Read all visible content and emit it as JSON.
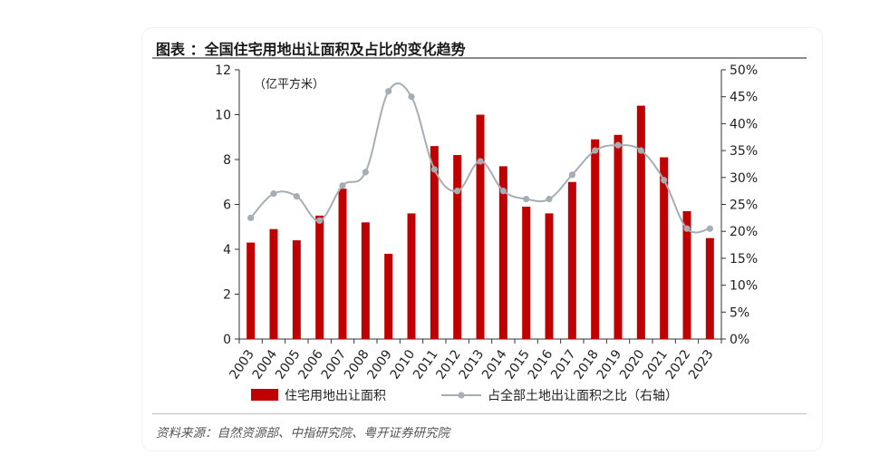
{
  "figure": {
    "title": "图表 ：全国住宅用地出让面积及占比的变化趋势",
    "source": "资料来源：自然资源部、中指研究院、粤开证券研究院"
  },
  "chart_data": {
    "type": "bar+line",
    "left_unit_label": "（亿平方米）",
    "categories": [
      "2003",
      "2004",
      "2005",
      "2006",
      "2007",
      "2008",
      "2009",
      "2010",
      "2011",
      "2012",
      "2013",
      "2014",
      "2015",
      "2016",
      "2017",
      "2018",
      "2019",
      "2020",
      "2021",
      "2022",
      "2023"
    ],
    "series": [
      {
        "name": "住宅用地出让面积",
        "type": "bar",
        "axis": "left",
        "color": "#c00000",
        "values": [
          4.3,
          4.9,
          4.4,
          5.5,
          6.7,
          5.2,
          3.8,
          5.6,
          8.6,
          8.2,
          10.0,
          7.7,
          5.9,
          5.6,
          7.0,
          8.9,
          9.1,
          10.4,
          8.1,
          5.7,
          4.5
        ]
      },
      {
        "name": "占全部土地出让面积之比（右轴）",
        "type": "line",
        "axis": "right",
        "color": "#a6aeb4",
        "values": [
          22.5,
          27.0,
          26.5,
          22.0,
          28.5,
          31.0,
          46.0,
          45.0,
          31.5,
          27.5,
          33.0,
          27.5,
          26.0,
          26.0,
          30.5,
          35.0,
          36.0,
          35.0,
          29.5,
          20.5,
          20.5
        ]
      }
    ],
    "left_axis": {
      "min": 0,
      "max": 12,
      "ticks": [
        0,
        2,
        4,
        6,
        8,
        10,
        12
      ]
    },
    "right_axis": {
      "min": 0,
      "max": 50,
      "ticks": [
        "0%",
        "5%",
        "10%",
        "15%",
        "20%",
        "25%",
        "30%",
        "35%",
        "40%",
        "45%",
        "50%"
      ]
    },
    "grid": false,
    "legend_position": "bottom"
  }
}
